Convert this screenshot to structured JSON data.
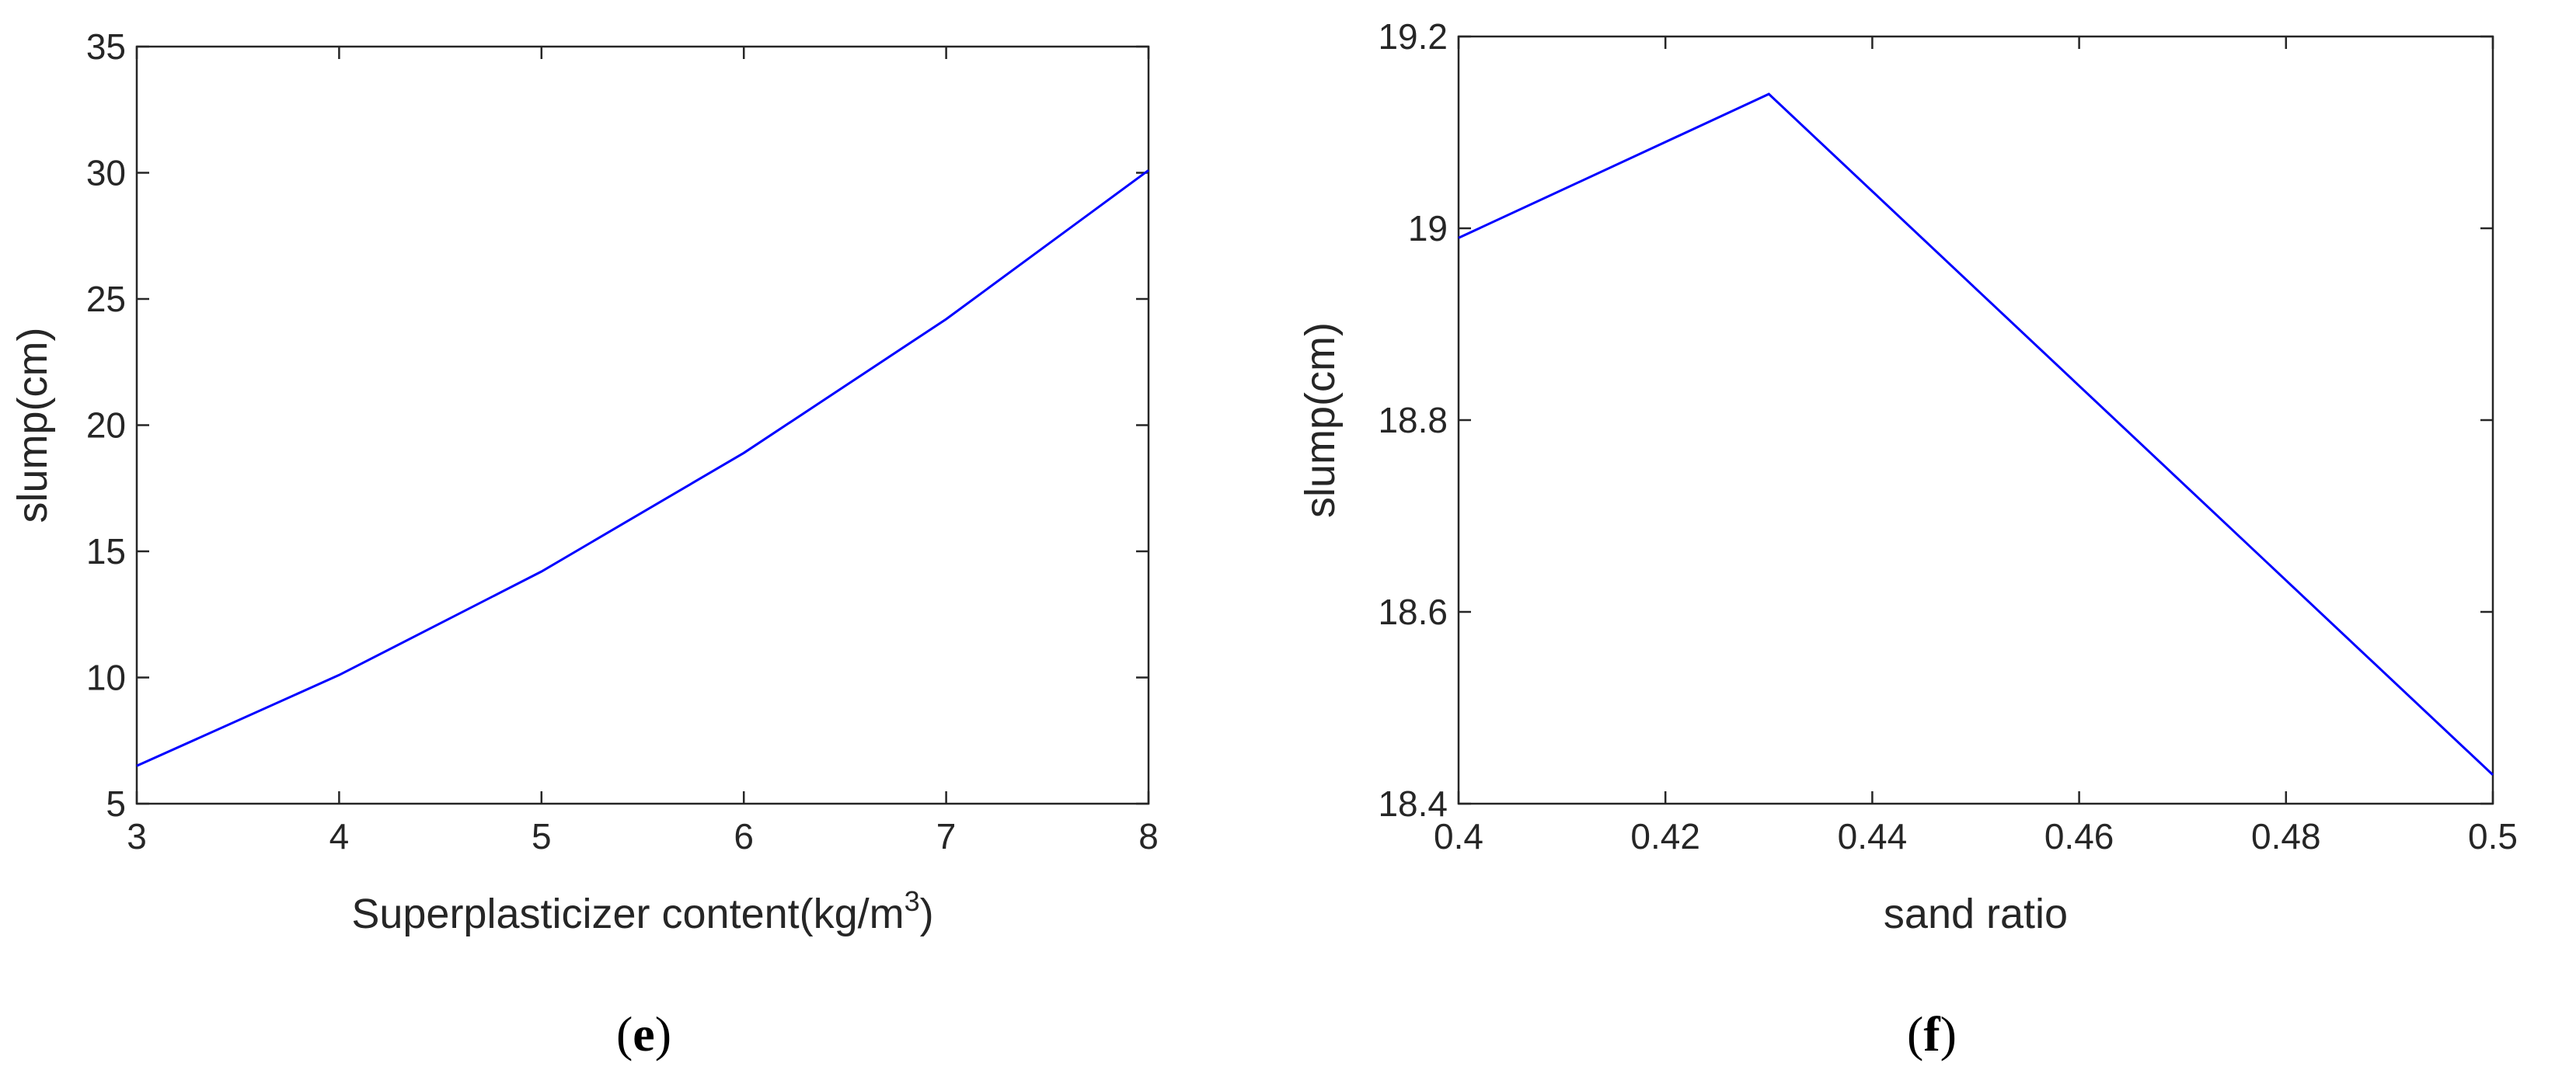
{
  "chart_data": [
    {
      "type": "line",
      "panel_label": "e",
      "xlabel": "Superplasticizer content(kg/m",
      "xlabel_sup": "3",
      "xlabel_suffix": ")",
      "ylabel": "slump(cm)",
      "xlim": [
        3,
        8
      ],
      "ylim": [
        5,
        35
      ],
      "xticks": [
        3,
        4,
        5,
        6,
        7,
        8
      ],
      "xtick_labels": [
        "3",
        "4",
        "5",
        "6",
        "7",
        "8"
      ],
      "yticks": [
        5,
        10,
        15,
        20,
        25,
        30,
        35
      ],
      "ytick_labels": [
        "5",
        "10",
        "15",
        "20",
        "25",
        "30",
        "35"
      ],
      "grid": false,
      "color": "#0000ff",
      "series": [
        {
          "x": [
            3,
            4,
            5,
            6,
            7,
            8
          ],
          "values": [
            6.5,
            10.1,
            14.2,
            18.9,
            24.2,
            30.1
          ]
        }
      ]
    },
    {
      "type": "line",
      "panel_label": "f",
      "xlabel": "sand ratio",
      "ylabel": "slump(cm)",
      "xlim": [
        0.4,
        0.5
      ],
      "ylim": [
        18.4,
        19.2
      ],
      "xticks": [
        0.4,
        0.42,
        0.44,
        0.46,
        0.48,
        0.5
      ],
      "xtick_labels": [
        "0.4",
        "0.42",
        "0.44",
        "0.46",
        "0.48",
        "0.5"
      ],
      "yticks": [
        18.4,
        18.6,
        18.8,
        19.0,
        19.2
      ],
      "ytick_labels": [
        "18.4",
        "18.6",
        "18.8",
        "19",
        "19.2"
      ],
      "grid": false,
      "color": "#0000ff",
      "series": [
        {
          "x": [
            0.4,
            0.43,
            0.5
          ],
          "values": [
            18.99,
            19.14,
            18.43
          ]
        }
      ]
    }
  ]
}
